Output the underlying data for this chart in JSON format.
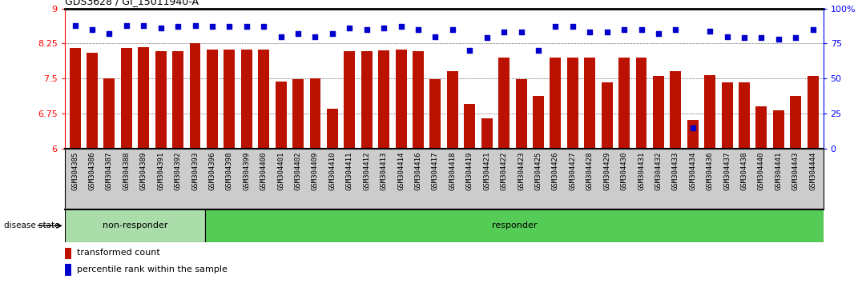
{
  "title": "GDS3628 / GI_15011940-A",
  "samples": [
    "GSM304385",
    "GSM304386",
    "GSM304387",
    "GSM304388",
    "GSM304389",
    "GSM304391",
    "GSM304392",
    "GSM304393",
    "GSM304396",
    "GSM304398",
    "GSM304399",
    "GSM304400",
    "GSM304401",
    "GSM304402",
    "GSM304409",
    "GSM304410",
    "GSM304411",
    "GSM304412",
    "GSM304413",
    "GSM304414",
    "GSM304416",
    "GSM304417",
    "GSM304418",
    "GSM304419",
    "GSM304421",
    "GSM304422",
    "GSM304423",
    "GSM304425",
    "GSM304426",
    "GSM304427",
    "GSM304428",
    "GSM304429",
    "GSM304430",
    "GSM304431",
    "GSM304432",
    "GSM304433",
    "GSM304434",
    "GSM304436",
    "GSM304437",
    "GSM304438",
    "GSM304440",
    "GSM304441",
    "GSM304443",
    "GSM304444"
  ],
  "bar_values": [
    8.15,
    8.05,
    7.5,
    8.15,
    8.18,
    8.08,
    8.08,
    8.25,
    8.12,
    8.12,
    8.12,
    8.12,
    7.43,
    7.48,
    7.5,
    6.85,
    8.08,
    8.08,
    8.1,
    8.12,
    8.08,
    7.48,
    7.65,
    6.95,
    6.65,
    7.95,
    7.48,
    7.12,
    7.95,
    7.95,
    7.95,
    7.42,
    7.95,
    7.95,
    7.55,
    7.65,
    6.62,
    7.58,
    7.42,
    7.42,
    6.9,
    6.82,
    7.12,
    7.55
  ],
  "percentile_values": [
    88,
    85,
    82,
    88,
    88,
    86,
    87,
    88,
    87,
    87,
    87,
    87,
    80,
    82,
    80,
    82,
    86,
    85,
    86,
    87,
    85,
    80,
    85,
    70,
    79,
    83,
    83,
    70,
    87,
    87,
    83,
    83,
    85,
    85,
    82,
    85,
    15,
    84,
    80,
    79,
    79,
    78,
    79,
    85
  ],
  "non_responder_count": 8,
  "ylim_left": [
    6.0,
    9.0
  ],
  "ylim_right": [
    0,
    100
  ],
  "yticks_left": [
    6.0,
    6.75,
    7.5,
    8.25,
    9.0
  ],
  "ytick_labels_left": [
    "6",
    "6.75",
    "7.5",
    "8.25",
    "9"
  ],
  "yticks_right": [
    0,
    25,
    50,
    75,
    100
  ],
  "ytick_labels_right": [
    "0",
    "25",
    "50",
    "75",
    "100%"
  ],
  "bar_color": "#BB1100",
  "dot_color": "#0000CC",
  "non_responder_color": "#AADDAA",
  "responder_color": "#55CC55",
  "legend_items": [
    "transformed count",
    "percentile rank within the sample"
  ],
  "disease_state_label": "disease state",
  "non_responder_label": "non-responder",
  "responder_label": "responder",
  "xtick_bg_color": "#CCCCCC"
}
